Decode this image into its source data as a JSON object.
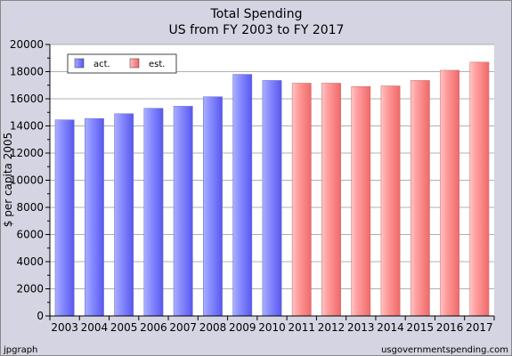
{
  "chart_data": {
    "type": "bar",
    "title": "Total Spending",
    "subtitle": "US from FY 2003 to FY 2017",
    "xlabel": "",
    "ylabel": "$ per capita 2005",
    "ylim": [
      0,
      20000
    ],
    "yticks": [
      0,
      2000,
      4000,
      6000,
      8000,
      10000,
      12000,
      14000,
      16000,
      18000,
      20000
    ],
    "grid": true,
    "legend_position": "top-left",
    "categories": [
      "2003",
      "2004",
      "2005",
      "2006",
      "2007",
      "2008",
      "2009",
      "2010",
      "2011",
      "2012",
      "2013",
      "2014",
      "2015",
      "2016",
      "2017"
    ],
    "values": [
      14450,
      14550,
      14900,
      15300,
      15450,
      16150,
      17800,
      17350,
      17150,
      17150,
      16900,
      16950,
      17350,
      18100,
      18700
    ],
    "status": [
      "act.",
      "act.",
      "act.",
      "act.",
      "act.",
      "act.",
      "act.",
      "act.",
      "est.",
      "est.",
      "est.",
      "est.",
      "est.",
      "est.",
      "est."
    ],
    "series": [
      {
        "name": "act.",
        "color": "#7777ff"
      },
      {
        "name": "est.",
        "color": "#ff8888"
      }
    ]
  },
  "footer": {
    "left": "jpgraph",
    "right": "usgovernmentspending.com"
  },
  "colors": {
    "background": "#d4d4e2",
    "plot_background": "#ffffff",
    "grid": "#b0b0b0"
  }
}
